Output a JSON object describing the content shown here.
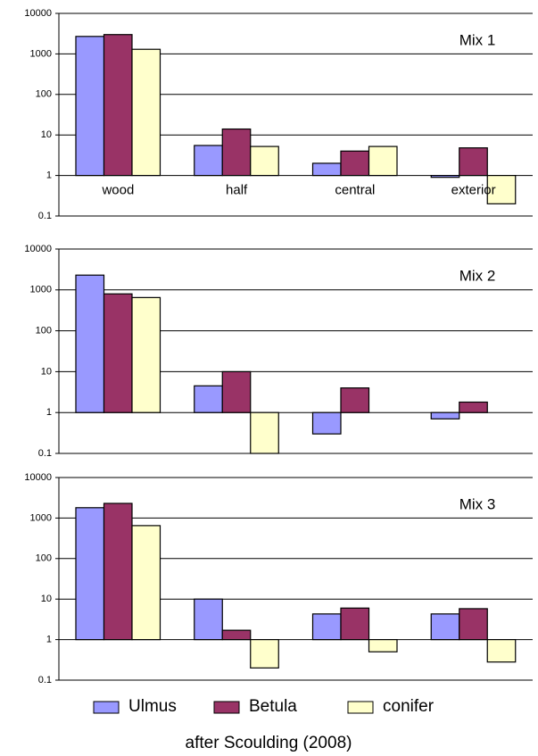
{
  "legend": [
    {
      "name": "Ulmus",
      "color": "#9999ff"
    },
    {
      "name": "Betula",
      "color": "#993366"
    },
    {
      "name": "conifer",
      "color": "#ffffcc"
    }
  ],
  "caption": "after Scoulding (2008)",
  "chart_data": [
    {
      "type": "bar",
      "title": "Mix 1",
      "log_scale": true,
      "grid": true,
      "bar_base": 1,
      "categories": [
        "wood",
        "half",
        "central",
        "exterior"
      ],
      "series": [
        {
          "values": [
            2700,
            5.5,
            2,
            0.9
          ]
        },
        {
          "values": [
            3000,
            14,
            4,
            4.8
          ]
        },
        {
          "values": [
            1300,
            5.2,
            5.2,
            0.2
          ]
        }
      ],
      "ylim": [
        0.1,
        10000
      ],
      "yticks": [
        0.1,
        1,
        10,
        100,
        1000,
        10000
      ]
    },
    {
      "type": "bar",
      "title": "Mix 2",
      "log_scale": true,
      "grid": true,
      "bar_base": 1,
      "categories": [
        null,
        null,
        null,
        null
      ],
      "series": [
        {
          "values": [
            2300,
            4.5,
            0.3,
            0.7
          ]
        },
        {
          "values": [
            800,
            10,
            4,
            1.8
          ]
        },
        {
          "values": [
            650,
            0.1,
            null,
            null
          ]
        }
      ],
      "ylim": [
        0.1,
        10000
      ],
      "yticks": [
        0.1,
        1,
        10,
        100,
        1000,
        10000
      ]
    },
    {
      "type": "bar",
      "title": "Mix 3",
      "log_scale": true,
      "grid": true,
      "bar_base": 1,
      "categories": [
        null,
        null,
        null,
        null
      ],
      "series": [
        {
          "values": [
            1800,
            10,
            4.3,
            4.3
          ]
        },
        {
          "values": [
            2300,
            1.7,
            6,
            5.8
          ]
        },
        {
          "values": [
            650,
            0.2,
            0.5,
            0.28
          ]
        }
      ],
      "ylim": [
        0.1,
        10000
      ],
      "yticks": [
        0.1,
        1,
        10,
        100,
        1000,
        10000
      ]
    }
  ]
}
